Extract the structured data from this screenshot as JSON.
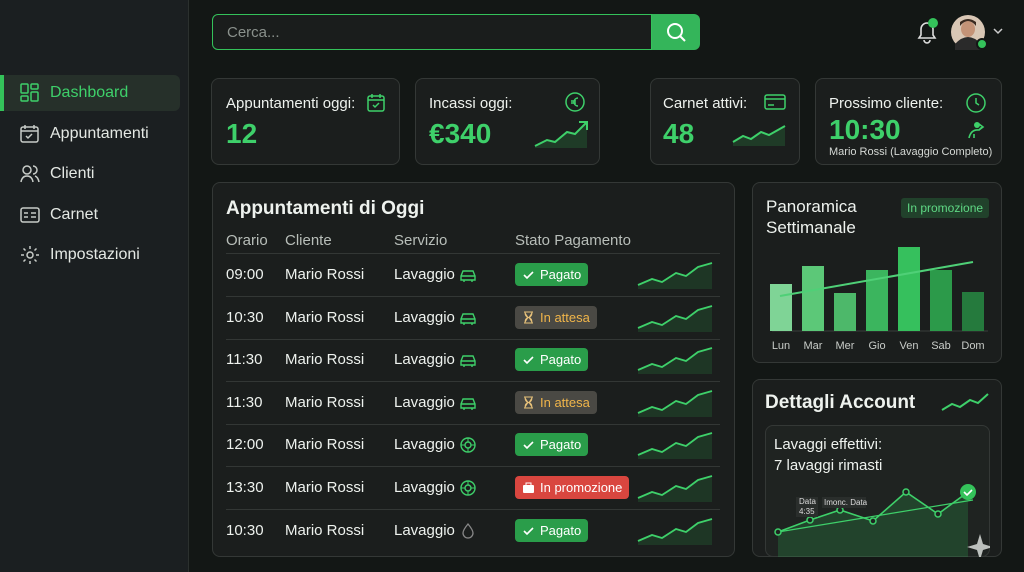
{
  "search": {
    "placeholder": "Cerca..."
  },
  "sidebar": {
    "items": [
      "Dashboard",
      "Appuntamenti",
      "Clienti",
      "Carnet",
      "Impostazioni"
    ],
    "active": 0
  },
  "stats": [
    {
      "label": "Appuntamenti oggi:",
      "value": "12"
    },
    {
      "label": "Incassi oggi:",
      "value": "€340"
    },
    {
      "label": "Carnet attivi:",
      "value": "48"
    },
    {
      "label": "Prossimo cliente:",
      "value": "10:30",
      "note": "Mario Rossi (Lavaggio Completo)"
    }
  ],
  "appointments": {
    "title": "Appuntamenti di Oggi",
    "columns": [
      "Orario",
      "Cliente",
      "Servizio",
      "Stato Pagamento"
    ],
    "rows": [
      {
        "time": "09:00",
        "client": "Mario Rossi",
        "service": "Lavaggio",
        "status": "Pagato",
        "badge_bg": "#2a9d4a",
        "badge_fg": "#ffffff"
      },
      {
        "time": "10:30",
        "client": "Mario Rossi",
        "service": "Lavaggio",
        "status": "In attesa",
        "badge_bg": "#4a4944",
        "badge_fg": "#f0b54a"
      },
      {
        "time": "11:30",
        "client": "Mario Rossi",
        "service": "Lavaggio",
        "status": "Pagato",
        "badge_bg": "#2a9d4a",
        "badge_fg": "#ffffff"
      },
      {
        "time": "11:30",
        "client": "Mario Rossi",
        "service": "Lavaggio",
        "status": "In attesa",
        "badge_bg": "#4a4944",
        "badge_fg": "#f0b54a"
      },
      {
        "time": "12:00",
        "client": "Mario Rossi",
        "service": "Lavaggio",
        "status": "Pagato",
        "badge_bg": "#2a9d4a",
        "badge_fg": "#ffffff"
      },
      {
        "time": "13:30",
        "client": "Mario Rossi",
        "service": "Lavaggio",
        "status": "In promozione",
        "badge_bg": "#d9463f",
        "badge_fg": "#ffffff"
      },
      {
        "time": "10:30",
        "client": "Mario Rossi",
        "service": "Lavaggio",
        "status": "Pagato",
        "badge_bg": "#2a9d4a",
        "badge_fg": "#ffffff"
      }
    ]
  },
  "weekly": {
    "title": "Panoramica Settimanale",
    "badge": "In promozione",
    "type": "bar",
    "categories": [
      "Lun",
      "Mar",
      "Mer",
      "Gio",
      "Ven",
      "Sab",
      "Dom"
    ],
    "values": [
      47,
      65,
      38,
      61,
      84,
      61,
      39
    ],
    "colors": [
      "#7fd496",
      "#5cc878",
      "#4db86a",
      "#3bb55e",
      "#36c05d",
      "#2c9a4a",
      "#257a3d"
    ]
  },
  "account": {
    "title": "Dettagli Account",
    "line1": "Lavaggi effettivi:",
    "line2": "7 lavaggi rimasti",
    "chart_labels": [
      "Data",
      "4:35",
      "Imonc. Data"
    ]
  }
}
